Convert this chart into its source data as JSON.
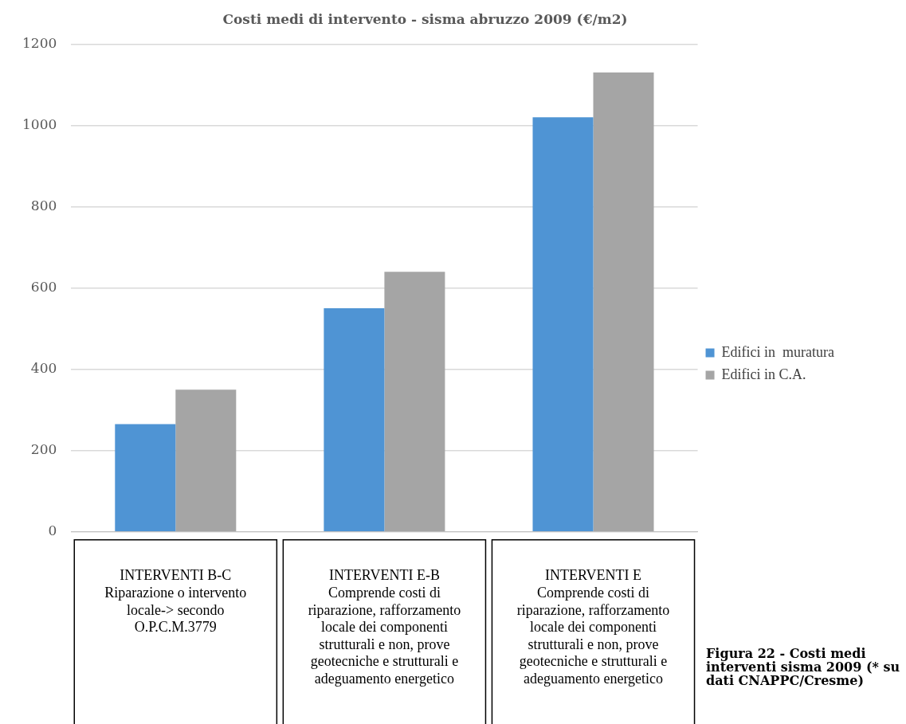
{
  "chart_data": {
    "type": "bar",
    "title": "Costi medi di intervento - sisma abruzzo 2009 (€/m2)",
    "categories": [
      "INTERVENTI B-C Riparazione o intervento locale-> secondo O.P.C.M.3779",
      "INTERVENTI E-B Comprende costi di riparazione, rafforzamento locale dei componenti strutturali e non, prove geotecniche e strutturali e adeguamento energetico",
      "INTERVENTI E Comprende costi di riparazione, rafforzamento locale dei componenti strutturali e non, prove geotecniche e strutturali e adeguamento energetico"
    ],
    "series": [
      {
        "name": "Edifici in  muratura",
        "color": "#4f94d4",
        "values": [
          265,
          550,
          1020
        ]
      },
      {
        "name": "Edifici in C.A.",
        "color": "#a5a5a5",
        "values": [
          350,
          640,
          1130
        ]
      }
    ],
    "ylim": [
      0,
      1200
    ],
    "yticks": [
      0,
      200,
      400,
      600,
      800,
      1000,
      1200
    ],
    "grid": "y",
    "legend": "right",
    "annotations": [
      "Figura 22 - Costi medi interventi sisma 2009 (* su dati CNAPPC/Cresme)"
    ]
  }
}
